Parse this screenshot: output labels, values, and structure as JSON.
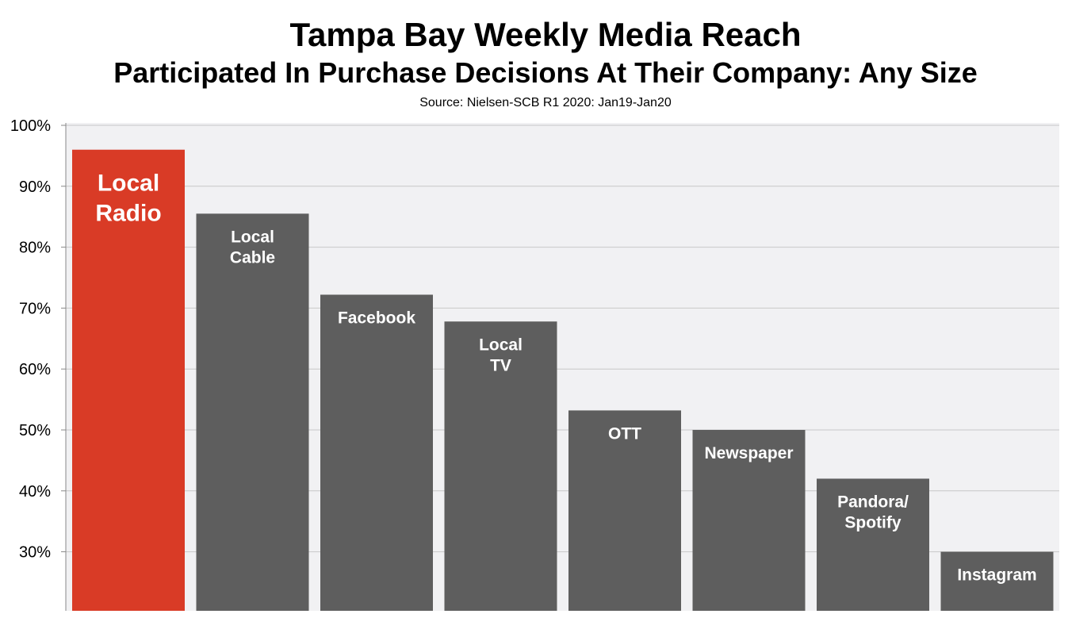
{
  "chart_data": {
    "type": "bar",
    "title": "Tampa Bay Weekly Media Reach",
    "subtitle": "Participated In Purchase Decisions At Their Company: Any Size",
    "source": "Source: Nielsen-SCB R1 2020: Jan19-Jan20",
    "categories": [
      "Local Radio",
      "Local Cable",
      "Facebook",
      "Local TV",
      "OTT",
      "Newspaper",
      "Pandora/ Spotify",
      "Instagram"
    ],
    "bar_label_lines": [
      [
        "Local",
        "Radio"
      ],
      [
        "Local",
        "Cable"
      ],
      [
        "Facebook"
      ],
      [
        "Local",
        "TV"
      ],
      [
        "OTT"
      ],
      [
        "Newspaper"
      ],
      [
        "Pandora/",
        "Spotify"
      ],
      [
        "Instagram"
      ]
    ],
    "values": [
      96,
      85.5,
      72.2,
      67.8,
      53.2,
      50,
      42,
      30
    ],
    "highlight_index": 0,
    "colors": {
      "highlight": "#d93b26",
      "bar": "#5e5e5e",
      "plot_bg": "#f1f1f3",
      "grid": "#c8c8c8"
    },
    "ylim": [
      20,
      100
    ],
    "yticks": [
      "100%",
      "90%",
      "80%",
      "70%",
      "60%",
      "50%",
      "40%",
      "30%"
    ],
    "ytick_values": [
      100,
      90,
      80,
      70,
      60,
      50,
      40,
      30
    ],
    "xlabel": "",
    "ylabel": "",
    "grid": true,
    "legend": "none"
  }
}
